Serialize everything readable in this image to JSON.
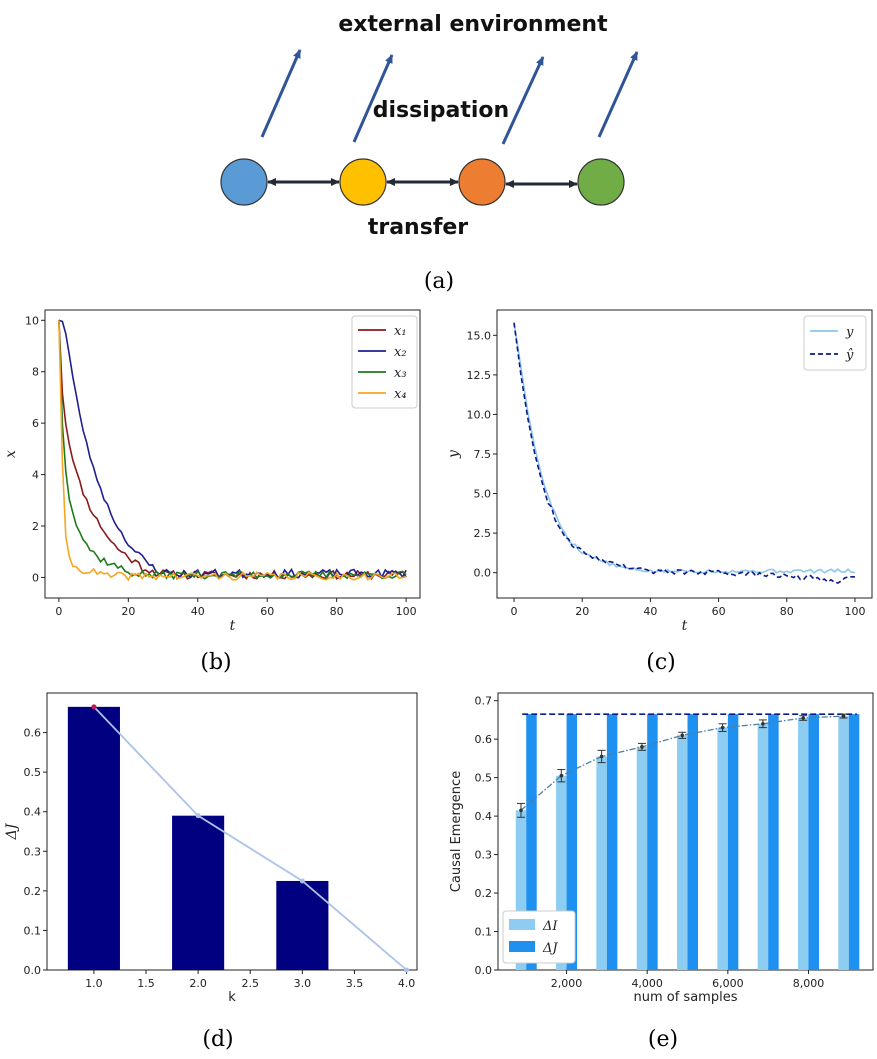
{
  "diagram": {
    "title": "external environment",
    "dissipation_label": "dissipation",
    "transfer_label": "transfer",
    "panel_label": "(a)",
    "nodes": [
      {
        "id": "blue",
        "color": "#5b9bd5"
      },
      {
        "id": "yellow",
        "color": "#ffc000"
      },
      {
        "id": "orange",
        "color": "#ed7d31"
      },
      {
        "id": "green",
        "color": "#70ad47"
      }
    ],
    "arrow_color": "#2f5597"
  },
  "chart_data": [
    {
      "id": "b",
      "panel_label": "(b)",
      "type": "line",
      "xlabel": "t",
      "ylabel": "x",
      "xlim": [
        -4,
        104
      ],
      "ylim": [
        -0.8,
        10.4
      ],
      "xticks": [
        0,
        20,
        40,
        60,
        80,
        100
      ],
      "yticks": [
        0,
        2,
        4,
        6,
        8,
        10
      ],
      "legend_position": "top-right",
      "series": [
        {
          "name": "x₁",
          "color": "#8b1a1a",
          "noise": 0.16,
          "seed": 11,
          "x": [
            0,
            1,
            2,
            3,
            5,
            7,
            9,
            12,
            15,
            18,
            21,
            24,
            28,
            32
          ],
          "y": [
            10,
            7.2,
            6.0,
            5.2,
            4.1,
            3.3,
            2.7,
            2.0,
            1.4,
            1.0,
            0.7,
            0.4,
            0.2,
            0.1
          ]
        },
        {
          "name": "x₂",
          "color": "#1f1f8f",
          "noise": 0.16,
          "seed": 23,
          "x": [
            0,
            1,
            2,
            4,
            6,
            8,
            10,
            13,
            16,
            19,
            22,
            25,
            28,
            32
          ],
          "y": [
            10,
            10,
            9.5,
            7.8,
            6.3,
            5.2,
            4.2,
            3.1,
            2.2,
            1.5,
            1.0,
            0.6,
            0.3,
            0.15
          ]
        },
        {
          "name": "x₃",
          "color": "#1e7a1e",
          "noise": 0.15,
          "seed": 37,
          "x": [
            0,
            1,
            2,
            3,
            5,
            7,
            9,
            11,
            14,
            17,
            20,
            25
          ],
          "y": [
            10,
            6.0,
            4.1,
            3.1,
            2.1,
            1.5,
            1.1,
            0.8,
            0.6,
            0.4,
            0.2,
            0.1
          ]
        },
        {
          "name": "x₄",
          "color": "#f5a623",
          "noise": 0.15,
          "seed": 41,
          "x": [
            0,
            1,
            2,
            3,
            5,
            7,
            10,
            14
          ],
          "y": [
            10,
            4.5,
            1.5,
            0.7,
            0.35,
            0.3,
            0.2,
            0.05
          ]
        }
      ]
    },
    {
      "id": "c",
      "panel_label": "(c)",
      "type": "line",
      "xlabel": "t",
      "ylabel": "y",
      "xlim": [
        -5,
        105
      ],
      "ylim": [
        -1.6,
        16.6
      ],
      "xticks": [
        0,
        20,
        40,
        60,
        80,
        100
      ],
      "yticks": [
        0.0,
        2.5,
        5.0,
        7.5,
        10.0,
        12.5,
        15.0
      ],
      "legend_position": "top-right",
      "series": [
        {
          "name": "y",
          "color": "#8cc6ea",
          "style": "solid",
          "noise": 0.12,
          "seed": 5,
          "x": [
            0,
            2,
            4,
            6,
            8,
            10,
            13,
            16,
            20,
            25,
            30,
            35,
            40
          ],
          "y": [
            15.8,
            13.0,
            10.2,
            8.0,
            6.2,
            4.8,
            3.2,
            2.1,
            1.3,
            0.8,
            0.4,
            0.2,
            0.1
          ]
        },
        {
          "name": "ŷ",
          "color": "#0a1a8c",
          "style": "dashed",
          "noise": 0.16,
          "seed": 9,
          "x": [
            0,
            2,
            4,
            6,
            8,
            10,
            13,
            16,
            20,
            25,
            30,
            35,
            40,
            60,
            80,
            90,
            95,
            100
          ],
          "y": [
            15.8,
            12.5,
            9.8,
            7.6,
            5.9,
            4.5,
            3.0,
            2.0,
            1.3,
            0.9,
            0.5,
            0.3,
            0.1,
            0.0,
            -0.2,
            -0.4,
            -0.5,
            -0.2
          ]
        }
      ]
    },
    {
      "id": "d",
      "panel_label": "(d)",
      "type": "bar",
      "xlabel": "k",
      "ylabel": "ΔJ",
      "xlim": [
        0.55,
        4.1
      ],
      "ylim": [
        0,
        0.7
      ],
      "xticks": [
        1.0,
        1.5,
        2.0,
        2.5,
        3.0,
        3.5,
        4.0
      ],
      "xtick_labels": [
        "1.0",
        "1.5",
        "2.0",
        "2.5",
        "3.0",
        "3.5",
        "4.0"
      ],
      "yticks": [
        0.0,
        0.1,
        0.2,
        0.3,
        0.4,
        0.5,
        0.6
      ],
      "bar_color": "#000080",
      "bar_width": 0.5,
      "categories": [
        1,
        2,
        3
      ],
      "values": [
        0.665,
        0.39,
        0.225
      ],
      "line": {
        "color": "#a9c4e8",
        "x": [
          1,
          2,
          3,
          4
        ],
        "y": [
          0.665,
          0.39,
          0.225,
          0.0
        ]
      },
      "marker_color": "#c0185a"
    },
    {
      "id": "e",
      "panel_label": "(e)",
      "type": "bar",
      "xlabel": "num of samples",
      "ylabel": "Causal Emergence",
      "xlim": [
        300,
        9600
      ],
      "ylim": [
        0,
        0.72
      ],
      "xticks": [
        2000,
        4000,
        6000,
        8000
      ],
      "xtick_labels": [
        "2,000",
        "4,000",
        "6,000",
        "8,000"
      ],
      "yticks": [
        0.0,
        0.1,
        0.2,
        0.3,
        0.4,
        0.5,
        0.6,
        0.7
      ],
      "legend_position": "bottom-left",
      "x": [
        1000,
        2000,
        3000,
        4000,
        5000,
        6000,
        7000,
        8000,
        9000
      ],
      "series": [
        {
          "name": "ΔI",
          "color": "#8ecdf2",
          "values": [
            0.415,
            0.505,
            0.555,
            0.58,
            0.61,
            0.63,
            0.64,
            0.655,
            0.66
          ],
          "errors": [
            0.018,
            0.016,
            0.016,
            0.009,
            0.008,
            0.01,
            0.01,
            0.006,
            0.005
          ]
        },
        {
          "name": "ΔJ",
          "color": "#1e90f0",
          "values": [
            0.665,
            0.665,
            0.665,
            0.665,
            0.665,
            0.665,
            0.665,
            0.665,
            0.665
          ]
        }
      ],
      "reference_line": {
        "y": 0.665,
        "color": "#0a1a8c"
      },
      "trend_line": {
        "color": "#4a7fa8"
      }
    }
  ]
}
